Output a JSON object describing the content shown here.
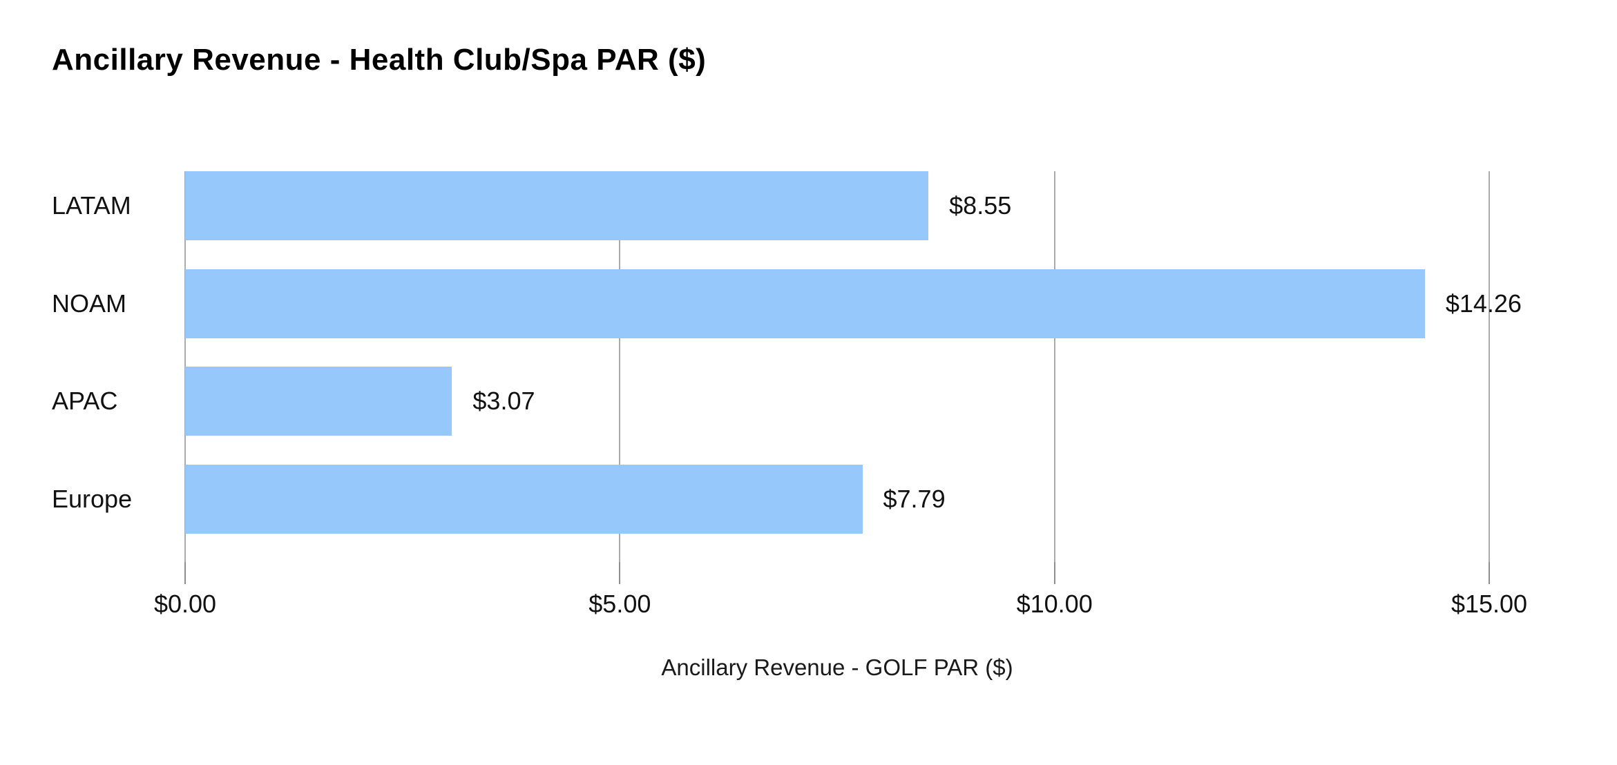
{
  "chart": {
    "title": "Ancillary Revenue - Health Club/Spa PAR ($)",
    "x_axis_title": "Ancillary Revenue - GOLF PAR ($)"
  },
  "chart_data": {
    "type": "bar",
    "orientation": "horizontal",
    "title": "Ancillary Revenue - Health Club/Spa PAR ($)",
    "xlabel": "Ancillary Revenue - GOLF PAR ($)",
    "ylabel": "",
    "categories": [
      "LATAM",
      "NOAM",
      "APAC",
      "Europe"
    ],
    "values": [
      8.55,
      14.26,
      3.07,
      7.79
    ],
    "value_labels": [
      "$8.55",
      "$14.26",
      "$3.07",
      "$7.79"
    ],
    "xlim": [
      0,
      15
    ],
    "xticks": [
      0,
      5,
      10,
      15
    ],
    "xtick_labels": [
      "$0.00",
      "$5.00",
      "$10.00",
      "$15.00"
    ],
    "grid": true,
    "legend": false
  },
  "colors": {
    "bar": "#97c8fb",
    "gridline": "#ababab",
    "tick": "#8f8f8f",
    "text": "#111111",
    "title": "#000000",
    "background": "#ffffff"
  }
}
